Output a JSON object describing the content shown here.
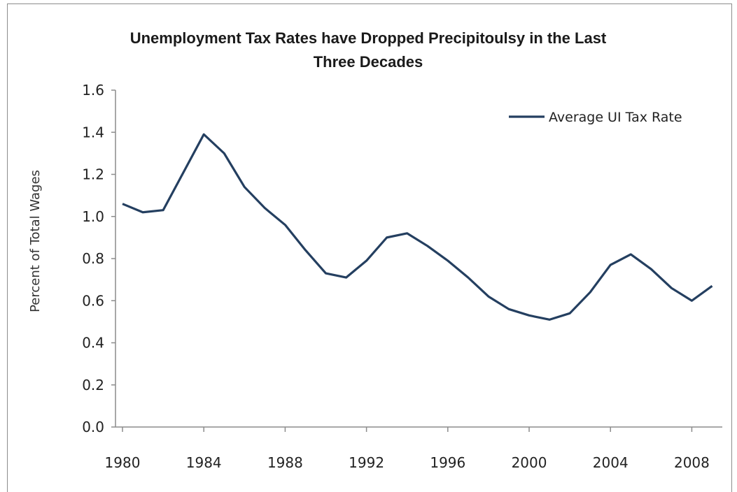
{
  "chart_data": {
    "type": "line",
    "title_line1": "Unemployment Tax Rates have Dropped Precipitoulsy in the Last",
    "title_line2": "Three Decades",
    "xlabel": "",
    "ylabel": "Percent of Total Wages",
    "ylim": [
      0,
      1.6
    ],
    "xlim": [
      1980,
      2009
    ],
    "y_ticks": [
      "0.0",
      "0.2",
      "0.4",
      "0.6",
      "0.8",
      "1.0",
      "1.2",
      "1.4",
      "1.6"
    ],
    "x_ticks": [
      "1980",
      "1984",
      "1988",
      "1992",
      "1996",
      "2000",
      "2004",
      "2008"
    ],
    "legend_position": "top-right",
    "grid": false,
    "series": [
      {
        "name": "Average UI Tax Rate",
        "color": "#243f60",
        "x": [
          1980,
          1981,
          1982,
          1983,
          1984,
          1985,
          1986,
          1987,
          1988,
          1989,
          1990,
          1991,
          1992,
          1993,
          1994,
          1995,
          1996,
          1997,
          1998,
          1999,
          2000,
          2001,
          2002,
          2003,
          2004,
          2005,
          2006,
          2007,
          2008,
          2009
        ],
        "values": [
          1.06,
          1.02,
          1.03,
          1.21,
          1.39,
          1.3,
          1.14,
          1.04,
          0.96,
          0.84,
          0.73,
          0.71,
          0.79,
          0.9,
          0.92,
          0.86,
          0.79,
          0.71,
          0.62,
          0.56,
          0.53,
          0.51,
          0.54,
          0.64,
          0.77,
          0.82,
          0.75,
          0.66,
          0.6,
          0.67
        ]
      }
    ]
  }
}
